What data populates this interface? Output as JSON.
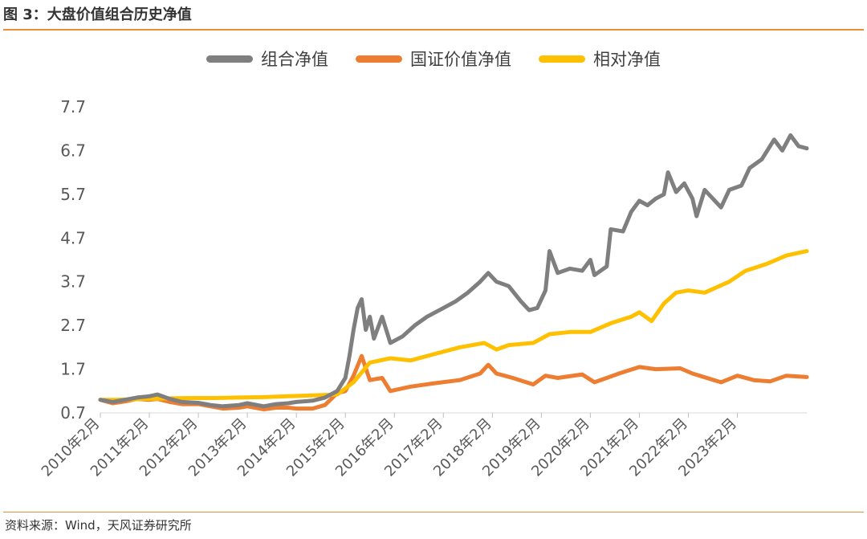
{
  "figure": {
    "title": "图 3：大盘价值组合历史净值",
    "source": "资料来源：Wind，天风证券研究所"
  },
  "colors": {
    "accent_rule": "#e69138"
  },
  "chart_data": {
    "type": "line",
    "title": "",
    "xlabel": "",
    "ylabel": "",
    "ylim": [
      0.7,
      7.7
    ],
    "yticks": [
      0.7,
      1.7,
      2.7,
      3.7,
      4.7,
      5.7,
      6.7,
      7.7
    ],
    "ytick_labels": [
      "0.7",
      "1.7",
      "2.7",
      "3.7",
      "4.7",
      "5.7",
      "6.7",
      "7.7"
    ],
    "xlim": [
      "2010-02",
      "2024-07"
    ],
    "xticks": [
      "2010-02",
      "2011-02",
      "2012-02",
      "2013-02",
      "2014-02",
      "2015-02",
      "2016-02",
      "2017-02",
      "2018-02",
      "2019-02",
      "2020-02",
      "2021-02",
      "2022-02",
      "2023-02"
    ],
    "xtick_labels": [
      "2010年2月",
      "2011年2月",
      "2012年2月",
      "2013年2月",
      "2014年2月",
      "2015年2月",
      "2016年2月",
      "2017年2月",
      "2018年2月",
      "2019年2月",
      "2020年2月",
      "2021年2月",
      "2022年2月",
      "2023年2月"
    ],
    "grid": false,
    "legend_position": "top-center",
    "series": [
      {
        "name": "组合净值",
        "color": "#7f7f7f",
        "points": [
          [
            "2010-02",
            1.0
          ],
          [
            "2010-05",
            0.95
          ],
          [
            "2010-08",
            1.0
          ],
          [
            "2010-11",
            1.05
          ],
          [
            "2011-02",
            1.08
          ],
          [
            "2011-04",
            1.12
          ],
          [
            "2011-07",
            1.02
          ],
          [
            "2011-10",
            0.95
          ],
          [
            "2012-02",
            0.93
          ],
          [
            "2012-05",
            0.88
          ],
          [
            "2012-08",
            0.85
          ],
          [
            "2012-12",
            0.88
          ],
          [
            "2013-02",
            0.92
          ],
          [
            "2013-06",
            0.85
          ],
          [
            "2013-09",
            0.9
          ],
          [
            "2013-12",
            0.92
          ],
          [
            "2014-02",
            0.95
          ],
          [
            "2014-06",
            0.98
          ],
          [
            "2014-09",
            1.05
          ],
          [
            "2014-12",
            1.2
          ],
          [
            "2015-02",
            1.5
          ],
          [
            "2015-03",
            2.0
          ],
          [
            "2015-04",
            2.6
          ],
          [
            "2015-05",
            3.1
          ],
          [
            "2015-06",
            3.3
          ],
          [
            "2015-07",
            2.6
          ],
          [
            "2015-08",
            2.9
          ],
          [
            "2015-09",
            2.4
          ],
          [
            "2015-11",
            2.9
          ],
          [
            "2016-01",
            2.3
          ],
          [
            "2016-04",
            2.45
          ],
          [
            "2016-07",
            2.7
          ],
          [
            "2016-10",
            2.9
          ],
          [
            "2017-02",
            3.1
          ],
          [
            "2017-05",
            3.25
          ],
          [
            "2017-08",
            3.45
          ],
          [
            "2017-11",
            3.7
          ],
          [
            "2018-01",
            3.9
          ],
          [
            "2018-03",
            3.7
          ],
          [
            "2018-06",
            3.6
          ],
          [
            "2018-09",
            3.25
          ],
          [
            "2018-11",
            3.05
          ],
          [
            "2019-01",
            3.1
          ],
          [
            "2019-03",
            3.5
          ],
          [
            "2019-04",
            4.4
          ],
          [
            "2019-06",
            3.9
          ],
          [
            "2019-09",
            4.0
          ],
          [
            "2019-12",
            3.95
          ],
          [
            "2020-02",
            4.2
          ],
          [
            "2020-03",
            3.85
          ],
          [
            "2020-06",
            4.05
          ],
          [
            "2020-07",
            4.9
          ],
          [
            "2020-10",
            4.85
          ],
          [
            "2020-12",
            5.3
          ],
          [
            "2021-02",
            5.55
          ],
          [
            "2021-04",
            5.45
          ],
          [
            "2021-06",
            5.6
          ],
          [
            "2021-08",
            5.7
          ],
          [
            "2021-09",
            6.2
          ],
          [
            "2021-11",
            5.75
          ],
          [
            "2022-01",
            5.95
          ],
          [
            "2022-03",
            5.6
          ],
          [
            "2022-04",
            5.2
          ],
          [
            "2022-06",
            5.8
          ],
          [
            "2022-08",
            5.6
          ],
          [
            "2022-10",
            5.4
          ],
          [
            "2022-12",
            5.8
          ],
          [
            "2023-03",
            5.9
          ],
          [
            "2023-05",
            6.3
          ],
          [
            "2023-08",
            6.5
          ],
          [
            "2023-11",
            6.95
          ],
          [
            "2024-01",
            6.7
          ],
          [
            "2024-03",
            7.05
          ],
          [
            "2024-05",
            6.8
          ],
          [
            "2024-07",
            6.75
          ]
        ]
      },
      {
        "name": "国证价值净值",
        "color": "#ed7d31",
        "points": [
          [
            "2010-02",
            1.0
          ],
          [
            "2010-05",
            0.92
          ],
          [
            "2010-08",
            0.96
          ],
          [
            "2010-11",
            1.02
          ],
          [
            "2011-02",
            1.0
          ],
          [
            "2011-04",
            1.02
          ],
          [
            "2011-07",
            0.95
          ],
          [
            "2011-10",
            0.9
          ],
          [
            "2012-02",
            0.9
          ],
          [
            "2012-05",
            0.85
          ],
          [
            "2012-08",
            0.8
          ],
          [
            "2012-12",
            0.82
          ],
          [
            "2013-02",
            0.85
          ],
          [
            "2013-06",
            0.78
          ],
          [
            "2013-09",
            0.82
          ],
          [
            "2013-12",
            0.82
          ],
          [
            "2014-02",
            0.8
          ],
          [
            "2014-06",
            0.8
          ],
          [
            "2014-09",
            0.88
          ],
          [
            "2014-12",
            1.15
          ],
          [
            "2015-02",
            1.2
          ],
          [
            "2015-04",
            1.55
          ],
          [
            "2015-06",
            2.0
          ],
          [
            "2015-08",
            1.45
          ],
          [
            "2015-11",
            1.5
          ],
          [
            "2016-01",
            1.2
          ],
          [
            "2016-06",
            1.3
          ],
          [
            "2016-12",
            1.38
          ],
          [
            "2017-06",
            1.45
          ],
          [
            "2017-11",
            1.6
          ],
          [
            "2018-01",
            1.8
          ],
          [
            "2018-03",
            1.6
          ],
          [
            "2018-07",
            1.5
          ],
          [
            "2018-12",
            1.35
          ],
          [
            "2019-03",
            1.55
          ],
          [
            "2019-06",
            1.5
          ],
          [
            "2019-12",
            1.58
          ],
          [
            "2020-03",
            1.4
          ],
          [
            "2020-06",
            1.5
          ],
          [
            "2020-09",
            1.6
          ],
          [
            "2021-02",
            1.75
          ],
          [
            "2021-06",
            1.7
          ],
          [
            "2021-12",
            1.72
          ],
          [
            "2022-03",
            1.6
          ],
          [
            "2022-10",
            1.4
          ],
          [
            "2023-02",
            1.55
          ],
          [
            "2023-06",
            1.45
          ],
          [
            "2023-10",
            1.42
          ],
          [
            "2024-02",
            1.55
          ],
          [
            "2024-07",
            1.52
          ]
        ]
      },
      {
        "name": "相对净值",
        "color": "#ffc000",
        "points": [
          [
            "2010-02",
            1.0
          ],
          [
            "2010-06",
            1.0
          ],
          [
            "2010-12",
            1.02
          ],
          [
            "2011-06",
            1.03
          ],
          [
            "2011-12",
            1.04
          ],
          [
            "2012-06",
            1.04
          ],
          [
            "2012-12",
            1.05
          ],
          [
            "2013-06",
            1.06
          ],
          [
            "2013-12",
            1.08
          ],
          [
            "2014-06",
            1.1
          ],
          [
            "2014-12",
            1.12
          ],
          [
            "2015-04",
            1.4
          ],
          [
            "2015-08",
            1.85
          ],
          [
            "2016-01",
            1.95
          ],
          [
            "2016-06",
            1.9
          ],
          [
            "2016-12",
            2.05
          ],
          [
            "2017-06",
            2.2
          ],
          [
            "2017-12",
            2.3
          ],
          [
            "2018-03",
            2.15
          ],
          [
            "2018-06",
            2.25
          ],
          [
            "2018-12",
            2.3
          ],
          [
            "2019-04",
            2.5
          ],
          [
            "2019-09",
            2.55
          ],
          [
            "2020-02",
            2.55
          ],
          [
            "2020-07",
            2.75
          ],
          [
            "2020-12",
            2.9
          ],
          [
            "2021-02",
            3.0
          ],
          [
            "2021-05",
            2.8
          ],
          [
            "2021-08",
            3.2
          ],
          [
            "2021-11",
            3.45
          ],
          [
            "2022-02",
            3.5
          ],
          [
            "2022-06",
            3.45
          ],
          [
            "2022-12",
            3.7
          ],
          [
            "2023-04",
            3.95
          ],
          [
            "2023-09",
            4.1
          ],
          [
            "2024-02",
            4.3
          ],
          [
            "2024-07",
            4.4
          ]
        ]
      }
    ]
  }
}
